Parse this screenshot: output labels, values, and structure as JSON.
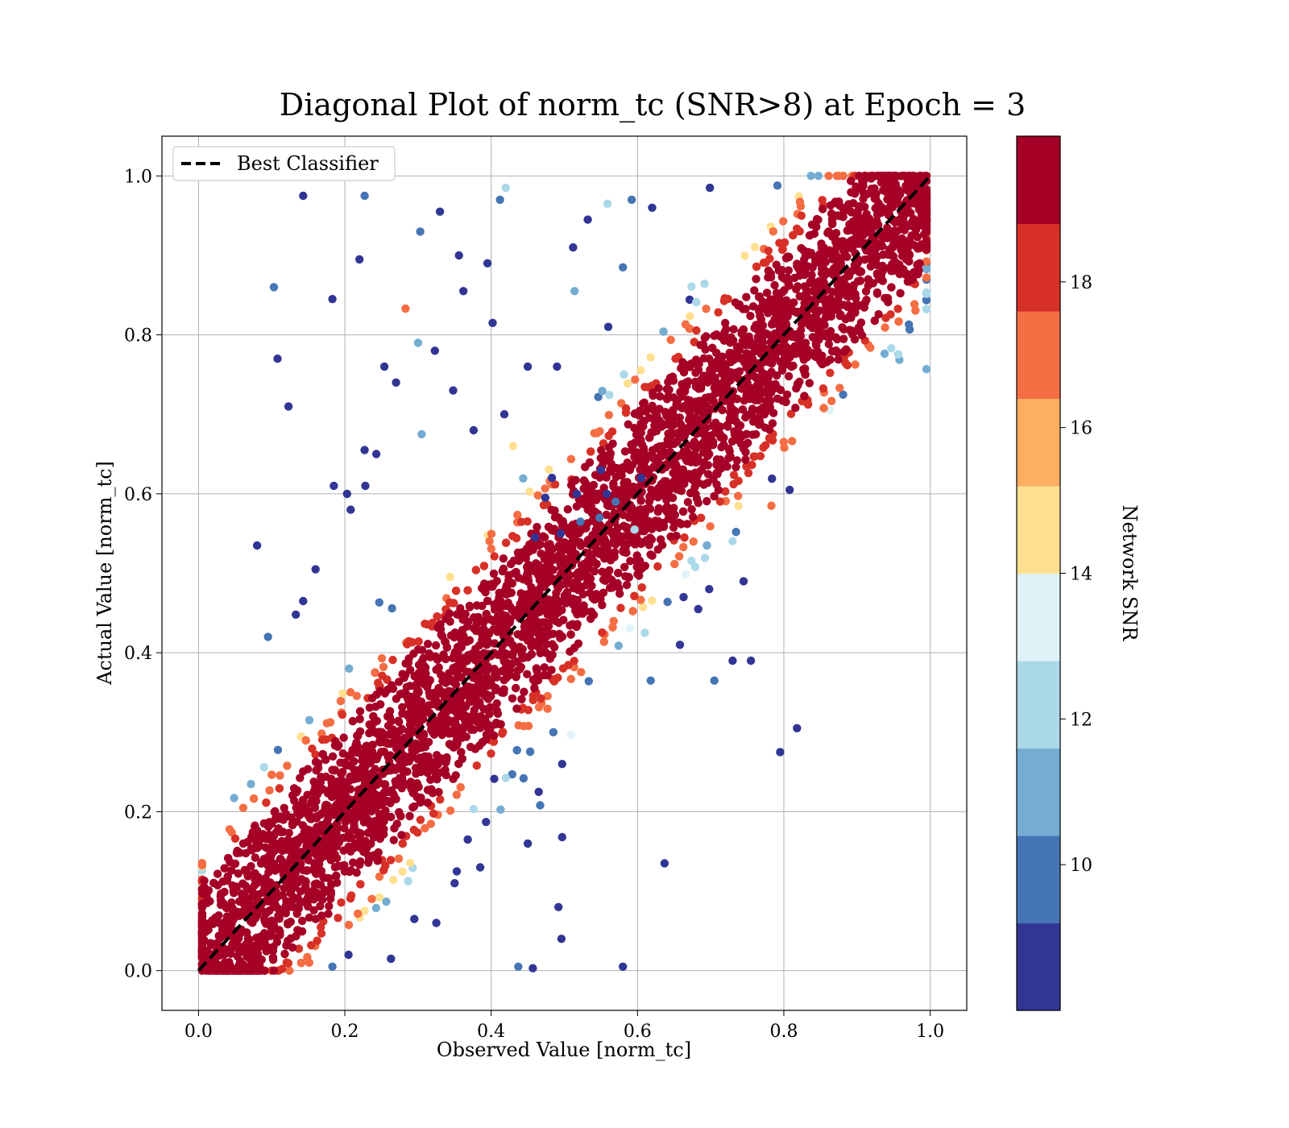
{
  "chart_data": {
    "type": "scatter",
    "title": "Diagonal Plot of norm_tc (SNR>8) at Epoch = 3",
    "xlabel": "Observed Value [norm_tc]",
    "ylabel": "Actual Value [norm_tc]",
    "xlim": [
      -0.05,
      1.05
    ],
    "ylim": [
      -0.05,
      1.05
    ],
    "xticks": [
      "0.0",
      "0.2",
      "0.4",
      "0.6",
      "0.8",
      "1.0"
    ],
    "yticks": [
      "0.0",
      "0.2",
      "0.4",
      "0.6",
      "0.8",
      "1.0"
    ],
    "grid": true,
    "legend": {
      "placement": "top-left",
      "entries": [
        "Best Classifier"
      ]
    },
    "reference_line": {
      "name": "Best Classifier",
      "style": "dashed",
      "color": "#000000",
      "x": [
        0,
        1
      ],
      "y": [
        0,
        1
      ]
    },
    "colorbar": {
      "label": "Network SNR",
      "ticks": [
        "10",
        "12",
        "14",
        "16",
        "18"
      ],
      "range": [
        8,
        20
      ],
      "colors": [
        "#313695",
        "#4575b4",
        "#74add1",
        "#abd9e9",
        "#e0f3f8",
        "#fee090",
        "#fdae61",
        "#f46d43",
        "#d73027",
        "#a50026"
      ]
    },
    "outliers": [
      [
        0.143,
        0.975,
        9
      ],
      [
        0.227,
        0.975,
        10
      ],
      [
        0.103,
        0.86,
        10
      ],
      [
        0.108,
        0.77,
        9
      ],
      [
        0.123,
        0.71,
        9
      ],
      [
        0.183,
        0.845,
        9
      ],
      [
        0.22,
        0.895,
        9
      ],
      [
        0.08,
        0.535,
        9
      ],
      [
        0.254,
        0.76,
        9
      ],
      [
        0.27,
        0.74,
        9
      ],
      [
        0.283,
        0.833,
        17
      ],
      [
        0.303,
        0.93,
        10
      ],
      [
        0.33,
        0.955,
        9
      ],
      [
        0.362,
        0.855,
        9
      ],
      [
        0.395,
        0.89,
        9
      ],
      [
        0.402,
        0.815,
        9
      ],
      [
        0.356,
        0.9,
        9
      ],
      [
        0.412,
        0.97,
        10
      ],
      [
        0.42,
        0.985,
        12
      ],
      [
        0.512,
        0.91,
        9
      ],
      [
        0.532,
        0.945,
        9
      ],
      [
        0.559,
        0.965,
        12
      ],
      [
        0.592,
        0.97,
        10
      ],
      [
        0.62,
        0.96,
        9
      ],
      [
        0.699,
        0.985,
        9
      ],
      [
        0.58,
        0.885,
        10
      ],
      [
        0.514,
        0.855,
        11
      ],
      [
        0.56,
        0.81,
        9
      ],
      [
        0.45,
        0.76,
        9
      ],
      [
        0.49,
        0.76,
        9
      ],
      [
        0.227,
        0.655,
        9
      ],
      [
        0.243,
        0.65,
        9
      ],
      [
        0.203,
        0.6,
        9
      ],
      [
        0.185,
        0.61,
        9
      ],
      [
        0.208,
        0.58,
        9
      ],
      [
        0.228,
        0.61,
        9
      ],
      [
        0.16,
        0.505,
        9
      ],
      [
        0.143,
        0.465,
        9
      ],
      [
        0.095,
        0.42,
        10
      ],
      [
        0.133,
        0.448,
        9
      ],
      [
        0.305,
        0.675,
        11
      ],
      [
        0.43,
        0.66,
        15
      ],
      [
        0.3,
        0.79,
        11
      ],
      [
        0.323,
        0.78,
        9
      ],
      [
        0.348,
        0.73,
        9
      ],
      [
        0.418,
        0.7,
        9
      ],
      [
        0.376,
        0.68,
        9
      ],
      [
        0.495,
        0.55,
        9
      ],
      [
        0.73,
        0.39,
        9
      ],
      [
        0.705,
        0.365,
        10
      ],
      [
        0.755,
        0.39,
        9
      ],
      [
        0.618,
        0.365,
        10
      ],
      [
        0.658,
        0.41,
        9
      ],
      [
        0.795,
        0.275,
        9
      ],
      [
        0.818,
        0.305,
        9
      ],
      [
        0.637,
        0.135,
        9
      ],
      [
        0.58,
        0.005,
        9
      ],
      [
        0.437,
        0.005,
        10
      ],
      [
        0.457,
        0.003,
        9
      ],
      [
        0.496,
        0.04,
        9
      ],
      [
        0.492,
        0.08,
        9
      ],
      [
        0.497,
        0.168,
        9
      ],
      [
        0.45,
        0.16,
        9
      ],
      [
        0.467,
        0.208,
        10
      ],
      [
        0.465,
        0.225,
        9
      ],
      [
        0.393,
        0.187,
        9
      ],
      [
        0.368,
        0.165,
        9
      ],
      [
        0.385,
        0.13,
        9
      ],
      [
        0.353,
        0.125,
        9
      ],
      [
        0.35,
        0.11,
        9
      ],
      [
        0.325,
        0.06,
        9
      ],
      [
        0.295,
        0.065,
        9
      ],
      [
        0.263,
        0.015,
        9
      ],
      [
        0.205,
        0.02,
        9
      ],
      [
        0.183,
        0.005,
        10
      ],
      [
        0.485,
        0.3,
        10
      ],
      [
        0.497,
        0.26,
        9
      ],
      [
        0.683,
        0.455,
        9
      ],
      [
        0.698,
        0.48,
        9
      ],
      [
        0.745,
        0.49,
        9
      ],
      [
        0.808,
        0.605,
        9
      ],
      [
        0.783,
        0.585,
        17
      ],
      [
        0.61,
        0.425,
        12
      ],
      [
        0.663,
        0.47,
        9
      ],
      [
        0.558,
        0.6,
        9
      ],
      [
        0.548,
        0.57,
        10
      ],
      [
        0.57,
        0.59,
        10
      ],
      [
        0.55,
        0.63,
        9
      ],
      [
        0.605,
        0.62,
        9
      ],
      [
        0.596,
        0.555,
        12
      ],
      [
        0.522,
        0.565,
        10
      ],
      [
        0.517,
        0.6,
        9
      ],
      [
        0.483,
        0.62,
        9
      ],
      [
        0.474,
        0.595,
        9
      ],
      [
        0.46,
        0.545,
        9
      ]
    ]
  }
}
